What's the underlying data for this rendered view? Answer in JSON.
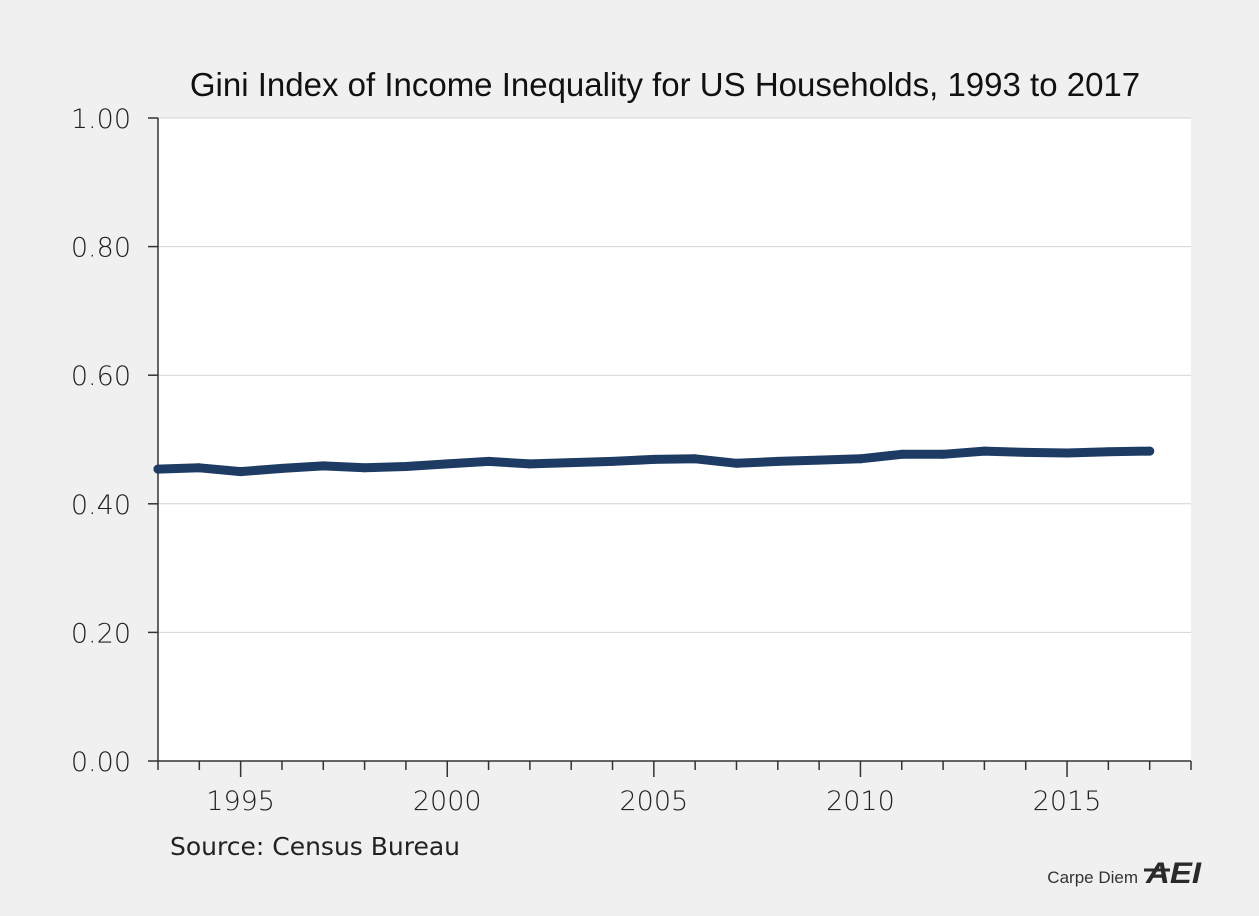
{
  "chart_data": {
    "type": "line",
    "title": "Gini Index of Income Inequality for US Households, 1993 to 2017",
    "xlabel": "",
    "ylabel": "",
    "xlim": [
      1993,
      2018
    ],
    "ylim": [
      0,
      1
    ],
    "grid": true,
    "x_ticks": [
      1995,
      2000,
      2005,
      2010,
      2015
    ],
    "x_tick_labels": [
      "1995",
      "2000",
      "2005",
      "2010",
      "2015"
    ],
    "y_ticks": [
      0,
      0.2,
      0.4,
      0.6,
      0.8,
      1.0
    ],
    "y_tick_labels": [
      "0.00",
      "0.20",
      "0.40",
      "0.60",
      "0.80",
      "1.00"
    ],
    "series": [
      {
        "name": "Gini Index",
        "color": "#1d3b63",
        "x": [
          1993,
          1994,
          1995,
          1996,
          1997,
          1998,
          1999,
          2000,
          2001,
          2002,
          2003,
          2004,
          2005,
          2006,
          2007,
          2008,
          2009,
          2010,
          2011,
          2012,
          2013,
          2014,
          2015,
          2016,
          2017
        ],
        "values": [
          0.454,
          0.456,
          0.45,
          0.455,
          0.459,
          0.456,
          0.458,
          0.462,
          0.466,
          0.462,
          0.464,
          0.466,
          0.469,
          0.47,
          0.463,
          0.466,
          0.468,
          0.47,
          0.477,
          0.477,
          0.482,
          0.48,
          0.479,
          0.481,
          0.482
        ]
      }
    ]
  },
  "source": "Source: Census Bureau",
  "brand": {
    "label": "Carpe Diem",
    "logo": "AEI"
  },
  "colors": {
    "background": "#f0f0f0",
    "plot_background": "#ffffff",
    "grid": "#d4d4d4",
    "axis": "#333333",
    "line": "#1d3b63"
  }
}
